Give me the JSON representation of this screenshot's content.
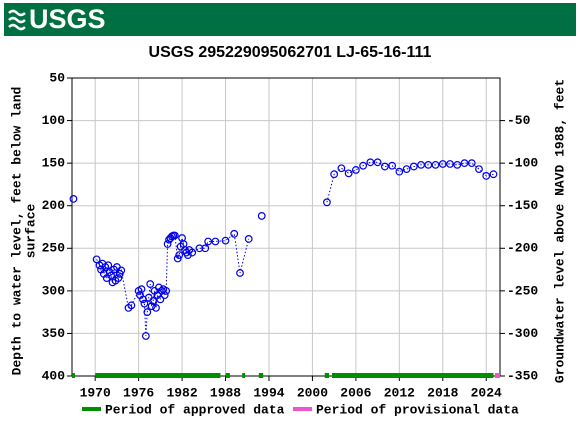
{
  "header": {
    "logo": "USGS"
  },
  "chart_data": {
    "type": "scatter",
    "title": "USGS 295229095062701 LJ-65-16-111",
    "y_label_lines": [
      "Depth to water level, feet below land",
      "surface"
    ],
    "y2_label": "Groundwater level above NAVD 1988, feet",
    "xlim": [
      1966.8,
      2025.9
    ],
    "xticks": [
      1970,
      1976,
      1982,
      1988,
      1994,
      2000,
      2006,
      2012,
      2018,
      2024
    ],
    "ylim": [
      50,
      400
    ],
    "yticks": [
      50,
      100,
      150,
      200,
      250,
      300,
      350,
      400
    ],
    "y2lim": [
      0,
      -350
    ],
    "y2ticks": [
      -50,
      -100,
      -150,
      -200,
      -250,
      -300,
      -350
    ],
    "grid": true,
    "series": [
      {
        "name": "Depth to water level",
        "color": "#0000ee",
        "x": [
          1967.0,
          1970.2,
          1970.6,
          1970.8,
          1971.0,
          1971.2,
          1971.4,
          1971.6,
          1971.8,
          1972.0,
          1972.2,
          1972.4,
          1972.6,
          1972.8,
          1973.0,
          1973.2,
          1973.4,
          1973.6,
          1974.6,
          1975.0,
          1976.0,
          1976.2,
          1976.4,
          1976.6,
          1976.8,
          1977.0,
          1977.2,
          1977.4,
          1977.6,
          1977.8,
          1978.0,
          1978.2,
          1978.4,
          1978.6,
          1978.8,
          1979.0,
          1979.2,
          1979.4,
          1979.6,
          1979.8,
          1980.0,
          1980.2,
          1980.4,
          1980.6,
          1980.8,
          1981.0,
          1981.4,
          1981.6,
          1981.8,
          1982.0,
          1982.2,
          1982.4,
          1982.6,
          1982.8,
          1983.0,
          1983.4,
          1984.4,
          1985.2,
          1985.6,
          1986.6,
          1988.0,
          1989.2,
          1990.0,
          1991.2,
          1993.0,
          2002.0,
          2003.0,
          2004.0,
          2005.0,
          2006.0,
          2007.0,
          2008.0,
          2009.0,
          2010.0,
          2011.0,
          2012.0,
          2013.0,
          2014.0,
          2015.0,
          2016.0,
          2017.0,
          2018.0,
          2019.0,
          2020.0,
          2021.0,
          2022.0,
          2023.0,
          2024.0,
          2025.0
        ],
        "values": [
          192,
          263,
          270,
          275,
          268,
          280,
          272,
          285,
          270,
          278,
          282,
          290,
          275,
          288,
          272,
          285,
          280,
          276,
          320,
          317,
          300,
          305,
          298,
          310,
          315,
          353,
          325,
          308,
          292,
          318,
          312,
          300,
          320,
          305,
          296,
          310,
          300,
          298,
          305,
          300,
          245,
          240,
          238,
          236,
          235,
          235,
          262,
          258,
          248,
          238,
          245,
          252,
          255,
          258,
          252,
          255,
          250,
          250,
          242,
          242,
          241,
          233,
          279,
          239,
          212,
          196,
          163,
          156,
          162,
          158,
          153,
          149,
          149,
          154,
          153,
          160,
          157,
          154,
          152,
          152,
          152,
          151,
          151,
          152,
          150,
          150,
          157,
          165,
          163
        ]
      }
    ],
    "periods": [
      {
        "name": "Period of approved data",
        "color": "#008f00",
        "ranges": [
          [
            1966.8,
            1967.2
          ],
          [
            1970.0,
            1987.3
          ],
          [
            1988.0,
            1988.6
          ],
          [
            1990.3,
            1990.7
          ],
          [
            1992.6,
            1993.2
          ],
          [
            2001.7,
            2002.3
          ],
          [
            2002.7,
            2025.0
          ]
        ]
      },
      {
        "name": "Period of provisional data",
        "color": "#ee55cc",
        "ranges": [
          [
            2025.2,
            2025.9
          ]
        ]
      }
    ]
  }
}
